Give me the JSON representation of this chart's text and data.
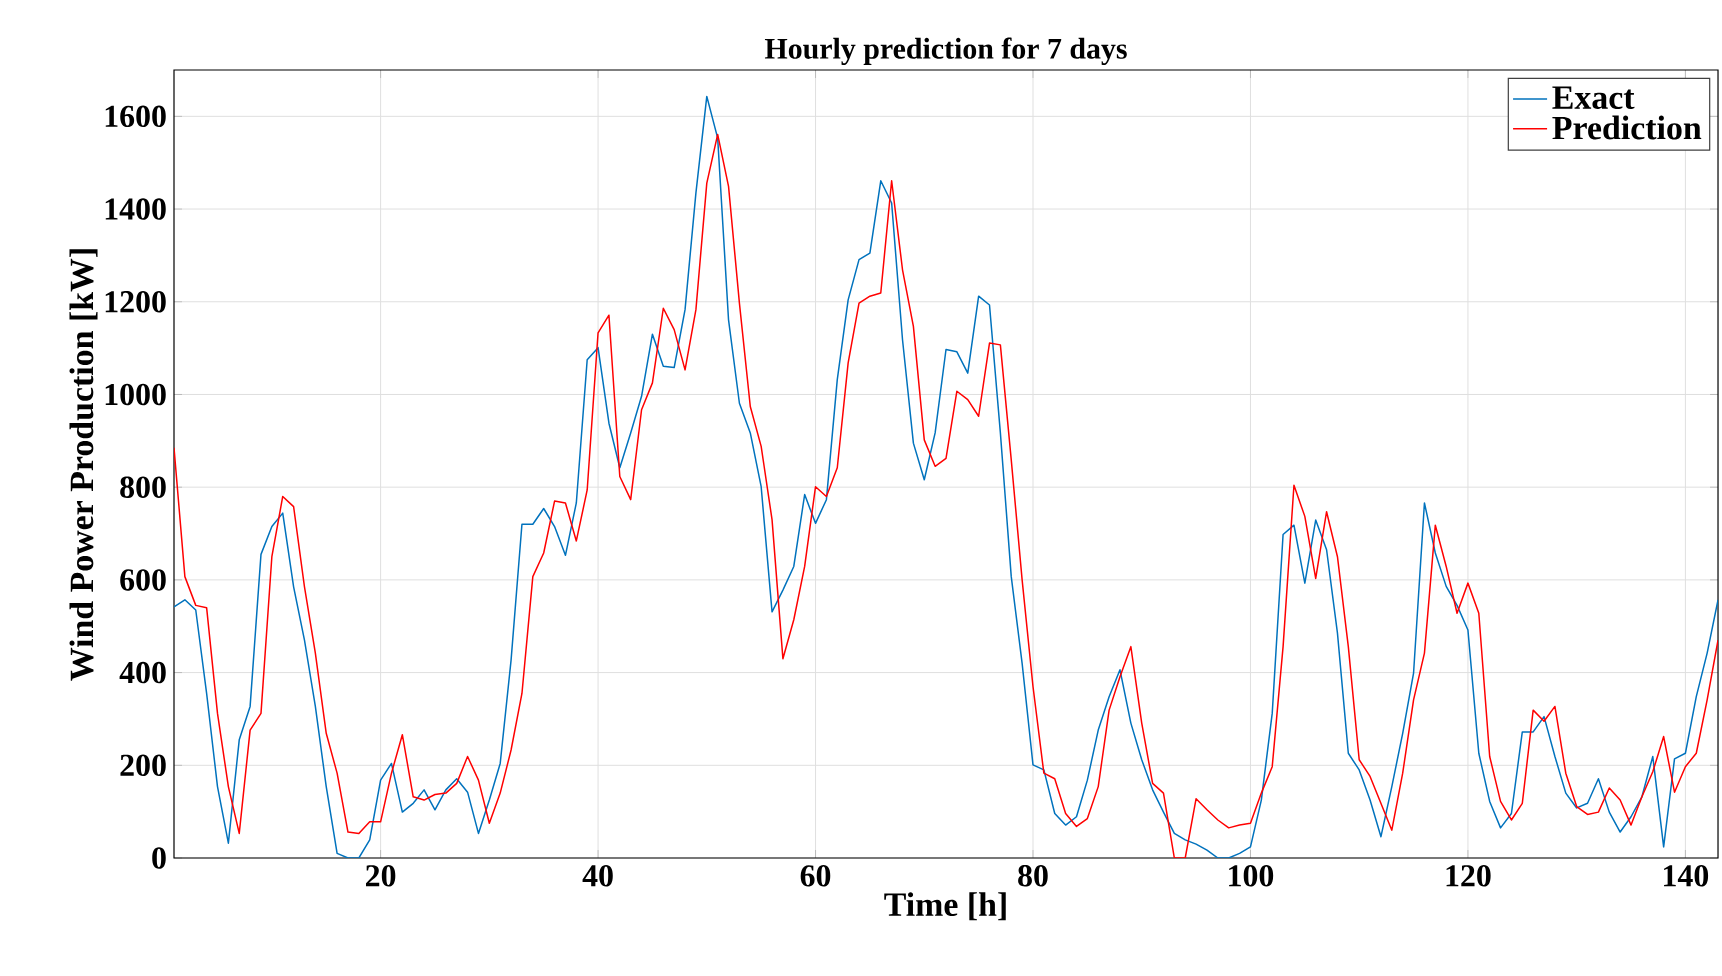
{
  "chart_data": {
    "type": "line",
    "title": "Hourly prediction for 7 days",
    "xlabel": "Time [h]",
    "ylabel": "Wind Power Production [kW]",
    "x": [
      1,
      2,
      3,
      4,
      5,
      6,
      7,
      8,
      9,
      10,
      11,
      12,
      13,
      14,
      15,
      16,
      17,
      18,
      19,
      20,
      21,
      22,
      23,
      24,
      25,
      26,
      27,
      28,
      29,
      30,
      31,
      32,
      33,
      34,
      35,
      36,
      37,
      38,
      39,
      40,
      41,
      42,
      43,
      44,
      45,
      46,
      47,
      48,
      49,
      50,
      51,
      52,
      53,
      54,
      55,
      56,
      57,
      58,
      59,
      60,
      61,
      62,
      63,
      64,
      65,
      66,
      67,
      68,
      69,
      70,
      71,
      72,
      73,
      74,
      75,
      76,
      77,
      78,
      79,
      80,
      81,
      82,
      83,
      84,
      85,
      86,
      87,
      88,
      89,
      90,
      91,
      92,
      93,
      94,
      95,
      96,
      97,
      98,
      99,
      100,
      101,
      102,
      103,
      104,
      105,
      106,
      107,
      108,
      109,
      110,
      111,
      112,
      113,
      114,
      115,
      116,
      117,
      118,
      119,
      120,
      121,
      122,
      123,
      124,
      125,
      126,
      127,
      128,
      129,
      130,
      131,
      132,
      133,
      134,
      135,
      136,
      137,
      138,
      139,
      140,
      141,
      142,
      143
    ],
    "series": [
      {
        "name": "Exact",
        "color": "#0072bd",
        "values": [
          542,
          557,
          535,
          355,
          154,
          32,
          255,
          327,
          655,
          715,
          744,
          585,
          470,
          327,
          154,
          10,
          0,
          0,
          39,
          168,
          204,
          99,
          118,
          147,
          104,
          147,
          171,
          142,
          53,
          125,
          204,
          427,
          720,
          720,
          754,
          715,
          653,
          766,
          1075,
          1101,
          938,
          842,
          917,
          996,
          1130,
          1061,
          1058,
          1183,
          1435,
          1643,
          1553,
          1161,
          981,
          917,
          801,
          531,
          578,
          629,
          784,
          722,
          773,
          1032,
          1204,
          1291,
          1305,
          1461,
          1413,
          1118,
          895,
          816,
          917,
          1097,
          1092,
          1046,
          1212,
          1193,
          917,
          607,
          420,
          201,
          190,
          96,
          71,
          89,
          168,
          276,
          348,
          406,
          291,
          212,
          147,
          99,
          53,
          39,
          30,
          17,
          0,
          0,
          10,
          24,
          125,
          312,
          698,
          718,
          593,
          729,
          665,
          485,
          226,
          190,
          125,
          46,
          154,
          269,
          399,
          766,
          658,
          586,
          545,
          492,
          226,
          122,
          65,
          96,
          272,
          272,
          305,
          219,
          140,
          108,
          118,
          171,
          99,
          56,
          89,
          132,
          219,
          24,
          214,
          226,
          348,
          442,
          557
        ]
      },
      {
        "name": "Prediction",
        "color": "#ff0000",
        "values": [
          885,
          607,
          545,
          540,
          312,
          154,
          53,
          276,
          312,
          650,
          780,
          758,
          585,
          442,
          269,
          183,
          56,
          53,
          78,
          78,
          183,
          266,
          132,
          125,
          137,
          140,
          161,
          219,
          168,
          75,
          140,
          233,
          355,
          607,
          658,
          770,
          766,
          684,
          794,
          1133,
          1171,
          823,
          773,
          967,
          1025,
          1186,
          1140,
          1053,
          1183,
          1456,
          1561,
          1449,
          1197,
          974,
          888,
          730,
          430,
          514,
          629,
          801,
          780,
          842,
          1068,
          1197,
          1212,
          1219,
          1461,
          1269,
          1147,
          902,
          845,
          862,
          1007,
          989,
          953,
          1111,
          1107,
          859,
          600,
          370,
          183,
          171,
          96,
          68,
          85,
          154,
          319,
          391,
          456,
          291,
          161,
          140,
          0,
          0,
          128,
          104,
          82,
          65,
          71,
          75,
          140,
          197,
          456,
          804,
          737,
          603,
          747,
          650,
          456,
          212,
          176,
          118,
          60,
          183,
          341,
          442,
          718,
          629,
          528,
          593,
          528,
          219,
          122,
          82,
          118,
          319,
          295,
          327,
          183,
          111,
          94,
          99,
          151,
          125,
          71,
          132,
          186,
          262,
          142,
          197,
          226,
          341,
          470
        ]
      }
    ],
    "xlim": [
      1,
      143
    ],
    "ylim": [
      0,
      1700
    ],
    "xticks": [
      20,
      40,
      60,
      80,
      100,
      120,
      140
    ],
    "yticks": [
      0,
      200,
      400,
      600,
      800,
      1000,
      1200,
      1400,
      1600
    ],
    "grid": true,
    "legend": "top right"
  }
}
